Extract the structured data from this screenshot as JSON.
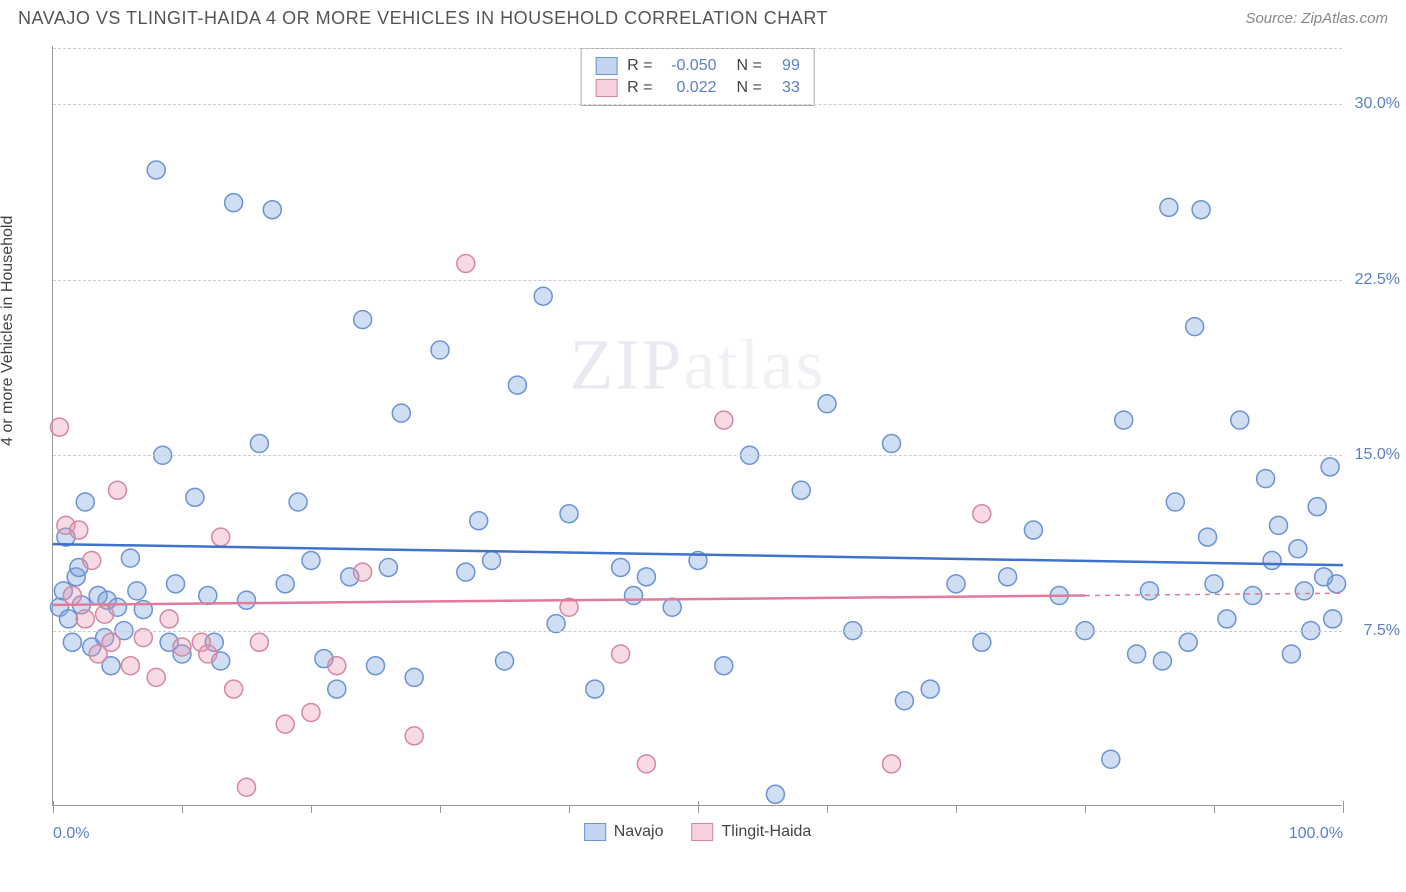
{
  "header": {
    "title": "NAVAJO VS TLINGIT-HAIDA 4 OR MORE VEHICLES IN HOUSEHOLD CORRELATION CHART",
    "source": "Source: ZipAtlas.com"
  },
  "ylabel": "4 or more Vehicles in Household",
  "watermark": {
    "bold": "ZIP",
    "light": "atlas"
  },
  "chart": {
    "type": "scatter",
    "xlim": [
      0,
      100
    ],
    "ylim": [
      0,
      32.5
    ],
    "x_ticks_major": [
      0,
      50,
      100
    ],
    "x_ticks_minor": [
      10,
      20,
      30,
      40,
      60,
      70,
      80,
      90
    ],
    "x_tick_labels": {
      "0": "0.0%",
      "100": "100.0%"
    },
    "y_ticks": [
      7.5,
      15.0,
      22.5,
      30.0
    ],
    "y_tick_labels": {
      "7.5": "7.5%",
      "15.0": "15.0%",
      "22.5": "22.5%",
      "30.0": "30.0%"
    },
    "grid_color": "#cccccc",
    "background_color": "#ffffff",
    "marker_radius": 9,
    "marker_stroke_width": 1.5,
    "line_width": 2.5,
    "series": [
      {
        "name": "Navajo",
        "fill": "rgba(120,160,220,0.35)",
        "stroke": "#6a93d4",
        "line_color": "#3f72c9",
        "r": -0.05,
        "n": 99,
        "trend": {
          "x0": 0,
          "y0": 11.2,
          "x1": 100,
          "y1": 10.3
        },
        "points": [
          [
            0.5,
            8.5
          ],
          [
            0.8,
            9.2
          ],
          [
            1.0,
            11.5
          ],
          [
            1.2,
            8.0
          ],
          [
            1.5,
            7.0
          ],
          [
            1.8,
            9.8
          ],
          [
            2.0,
            10.2
          ],
          [
            2.2,
            8.6
          ],
          [
            2.5,
            13.0
          ],
          [
            3.0,
            6.8
          ],
          [
            3.5,
            9.0
          ],
          [
            4.0,
            7.2
          ],
          [
            4.2,
            8.8
          ],
          [
            4.5,
            6.0
          ],
          [
            5.0,
            8.5
          ],
          [
            5.5,
            7.5
          ],
          [
            6.0,
            10.6
          ],
          [
            6.5,
            9.2
          ],
          [
            7.0,
            8.4
          ],
          [
            8.0,
            27.2
          ],
          [
            8.5,
            15.0
          ],
          [
            9.0,
            7.0
          ],
          [
            9.5,
            9.5
          ],
          [
            10.0,
            6.5
          ],
          [
            11.0,
            13.2
          ],
          [
            12.0,
            9.0
          ],
          [
            12.5,
            7.0
          ],
          [
            13.0,
            6.2
          ],
          [
            14.0,
            25.8
          ],
          [
            15.0,
            8.8
          ],
          [
            16.0,
            15.5
          ],
          [
            17.0,
            25.5
          ],
          [
            18.0,
            9.5
          ],
          [
            19.0,
            13.0
          ],
          [
            20.0,
            10.5
          ],
          [
            21.0,
            6.3
          ],
          [
            22.0,
            5.0
          ],
          [
            23.0,
            9.8
          ],
          [
            24.0,
            20.8
          ],
          [
            25.0,
            6.0
          ],
          [
            26.0,
            10.2
          ],
          [
            27.0,
            16.8
          ],
          [
            28.0,
            5.5
          ],
          [
            30.0,
            19.5
          ],
          [
            32.0,
            10.0
          ],
          [
            33.0,
            12.2
          ],
          [
            34.0,
            10.5
          ],
          [
            35.0,
            6.2
          ],
          [
            36.0,
            18.0
          ],
          [
            38.0,
            21.8
          ],
          [
            39.0,
            7.8
          ],
          [
            40.0,
            12.5
          ],
          [
            42.0,
            5.0
          ],
          [
            44.0,
            10.2
          ],
          [
            45.0,
            9.0
          ],
          [
            46.0,
            9.8
          ],
          [
            48.0,
            8.5
          ],
          [
            50.0,
            10.5
          ],
          [
            52.0,
            6.0
          ],
          [
            54.0,
            15.0
          ],
          [
            56.0,
            0.5
          ],
          [
            58.0,
            13.5
          ],
          [
            60.0,
            17.2
          ],
          [
            62.0,
            7.5
          ],
          [
            65.0,
            15.5
          ],
          [
            66.0,
            4.5
          ],
          [
            68.0,
            5.0
          ],
          [
            70.0,
            9.5
          ],
          [
            72.0,
            7.0
          ],
          [
            74.0,
            9.8
          ],
          [
            76.0,
            11.8
          ],
          [
            78.0,
            9.0
          ],
          [
            80.0,
            7.5
          ],
          [
            82.0,
            2.0
          ],
          [
            83.0,
            16.5
          ],
          [
            84.0,
            6.5
          ],
          [
            85.0,
            9.2
          ],
          [
            86.5,
            25.6
          ],
          [
            86.0,
            6.2
          ],
          [
            87.0,
            13.0
          ],
          [
            88.0,
            7.0
          ],
          [
            88.5,
            20.5
          ],
          [
            89.0,
            25.5
          ],
          [
            89.5,
            11.5
          ],
          [
            90.0,
            9.5
          ],
          [
            91.0,
            8.0
          ],
          [
            92.0,
            16.5
          ],
          [
            93.0,
            9.0
          ],
          [
            94.0,
            14.0
          ],
          [
            94.5,
            10.5
          ],
          [
            95.0,
            12.0
          ],
          [
            96.0,
            6.5
          ],
          [
            96.5,
            11.0
          ],
          [
            97.0,
            9.2
          ],
          [
            97.5,
            7.5
          ],
          [
            98.0,
            12.8
          ],
          [
            98.5,
            9.8
          ],
          [
            99.0,
            14.5
          ],
          [
            99.2,
            8.0
          ],
          [
            99.5,
            9.5
          ]
        ]
      },
      {
        "name": "Tlingit-Haida",
        "fill": "rgba(235,150,175,0.35)",
        "stroke": "#d687a0",
        "line_color": "#e27a9a",
        "r": 0.022,
        "n": 33,
        "trend": {
          "x0": 0,
          "y0": 8.6,
          "x1": 80,
          "y1": 9.0,
          "dashed_to": 100
        },
        "points": [
          [
            0.5,
            16.2
          ],
          [
            1.0,
            12.0
          ],
          [
            1.5,
            9.0
          ],
          [
            2.0,
            11.8
          ],
          [
            2.5,
            8.0
          ],
          [
            3.0,
            10.5
          ],
          [
            3.5,
            6.5
          ],
          [
            4.0,
            8.2
          ],
          [
            4.5,
            7.0
          ],
          [
            5.0,
            13.5
          ],
          [
            6.0,
            6.0
          ],
          [
            7.0,
            7.2
          ],
          [
            8.0,
            5.5
          ],
          [
            9.0,
            8.0
          ],
          [
            10.0,
            6.8
          ],
          [
            11.5,
            7.0
          ],
          [
            12.0,
            6.5
          ],
          [
            13.0,
            11.5
          ],
          [
            14.0,
            5.0
          ],
          [
            15.0,
            0.8
          ],
          [
            16.0,
            7.0
          ],
          [
            18.0,
            3.5
          ],
          [
            20.0,
            4.0
          ],
          [
            22.0,
            6.0
          ],
          [
            24.0,
            10.0
          ],
          [
            28.0,
            3.0
          ],
          [
            32.0,
            23.2
          ],
          [
            40.0,
            8.5
          ],
          [
            44.0,
            6.5
          ],
          [
            46.0,
            1.8
          ],
          [
            52.0,
            16.5
          ],
          [
            65.0,
            1.8
          ],
          [
            72.0,
            12.5
          ]
        ]
      }
    ]
  },
  "legend_top": {
    "rows": [
      {
        "swatch_fill": "rgba(120,160,220,0.45)",
        "swatch_stroke": "#6a93d4",
        "r_label": "R =",
        "r_val": "-0.050",
        "n_label": "N =",
        "n_val": "99"
      },
      {
        "swatch_fill": "rgba(235,150,175,0.45)",
        "swatch_stroke": "#d687a0",
        "r_label": "R =",
        "r_val": "0.022",
        "n_label": "N =",
        "n_val": "33"
      }
    ]
  },
  "legend_bottom": {
    "items": [
      {
        "swatch_fill": "rgba(120,160,220,0.45)",
        "swatch_stroke": "#6a93d4",
        "label": "Navajo"
      },
      {
        "swatch_fill": "rgba(235,150,175,0.45)",
        "swatch_stroke": "#d687a0",
        "label": "Tlingit-Haida"
      }
    ]
  }
}
